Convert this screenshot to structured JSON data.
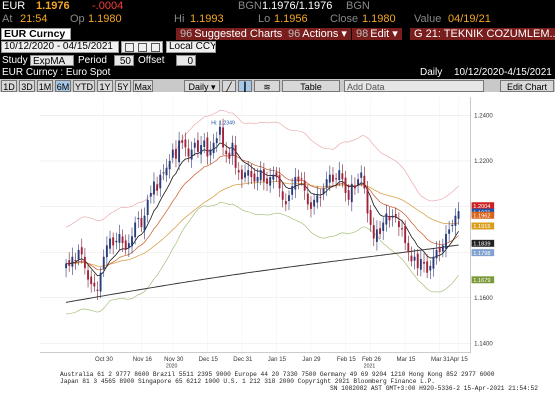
{
  "quote": {
    "ticker": "EUR",
    "last": "1.1976",
    "change": "-.0004",
    "bgn_label": "BGN",
    "bgn_bid_ask": "1.1976/1.1976",
    "bgn_2_label": "BGN",
    "time_prefix": "At",
    "time": "21:54",
    "op_label": "Op",
    "open": "1.1980",
    "hi_label": "Hi",
    "high": "1.1993",
    "lo_label": "Lo",
    "low": "1.1956",
    "close_label": "Close",
    "close": "1.1980",
    "value_label": "Value",
    "value_date": "04/19/21"
  },
  "toolbar": {
    "security": "EUR Curncy",
    "date_range": "10/12/2020 - 04/15/2021",
    "currency": "Local CCY",
    "suggested_num": "96",
    "suggested_label": "Suggested Charts",
    "actions_num": "96",
    "actions_label": "Actions",
    "edit_num": "98",
    "edit_label": "Edit",
    "page_label": "G 21: TEKNIK COZUMLEM..."
  },
  "study": {
    "study_label": "Study",
    "study_value": "ExpMA",
    "period_label": "Period",
    "period_value": "50",
    "offset_label": "Offset",
    "offset_value": "0"
  },
  "title": {
    "left": "EUR Curncy : Euro Spot",
    "freq": "Daily",
    "range": "10/12/2020-4/15/2021"
  },
  "buttons": {
    "periods": [
      "1D",
      "3D",
      "1M",
      "6M",
      "YTD",
      "1Y",
      "5Y",
      "Max"
    ],
    "selected_period": "6M",
    "freq_select": "Daily",
    "table_label": "Table",
    "add_data": "Add Data",
    "edit_chart": "Edit Chart"
  },
  "chart_data": {
    "type": "candlestick",
    "title": "EUR Curncy : Euro Spot",
    "x_ticks": [
      "Oct 30",
      "Nov 16",
      "Nov 30",
      "Dec 15",
      "Dec 31",
      "Jan 15",
      "Jan 29",
      "Feb 15",
      "Feb 26",
      "Mar 15",
      "Mar 31",
      "Apr 15"
    ],
    "year_labels": [
      {
        "after_tick": "Nov 30",
        "text": "2020"
      },
      {
        "after_tick": "Feb 26",
        "text": "2021"
      }
    ],
    "y_ticks": [
      "1.2400",
      "1.2200",
      "1.2000",
      "1.1800",
      "1.1600",
      "1.1400"
    ],
    "ylim": [
      1.136,
      1.248
    ],
    "hi_annotation": "Hi: 1.2349",
    "price_labels": [
      {
        "text": "1.2004",
        "value": 1.2004,
        "color": "#cc2222"
      },
      {
        "text": "1.1976",
        "value": 1.1976,
        "color": "#2255aa"
      },
      {
        "text": "1.1962",
        "value": 1.1962,
        "color": "#d9641a"
      },
      {
        "text": "1.1915",
        "value": 1.1915,
        "color": "#d99d1a"
      },
      {
        "text": "1.1839",
        "value": 1.1839,
        "color": "#222222"
      },
      {
        "text": "1.1798",
        "value": 1.1798,
        "color": "#7fa0d0"
      },
      {
        "text": "1.1679",
        "value": 1.1679,
        "color": "#7a9a3a"
      }
    ],
    "close_series": [
      1.175,
      1.174,
      1.178,
      1.176,
      1.181,
      1.179,
      1.173,
      1.168,
      1.166,
      1.165,
      1.163,
      1.171,
      1.178,
      1.183,
      1.186,
      1.183,
      1.185,
      1.188,
      1.184,
      1.181,
      1.184,
      1.187,
      1.193,
      1.195,
      1.191,
      1.196,
      1.203,
      1.206,
      1.211,
      1.207,
      1.214,
      1.215,
      1.217,
      1.22,
      1.225,
      1.221,
      1.229,
      1.228,
      1.226,
      1.222,
      1.225,
      1.228,
      1.224,
      1.227,
      1.229,
      1.222,
      1.225,
      1.228,
      1.23,
      1.235,
      1.226,
      1.223,
      1.221,
      1.228,
      1.217,
      1.215,
      1.212,
      1.215,
      1.216,
      1.213,
      1.211,
      1.213,
      1.216,
      1.211,
      1.21,
      1.213,
      1.214,
      1.213,
      1.208,
      1.203,
      1.201,
      1.205,
      1.209,
      1.213,
      1.211,
      1.212,
      1.207,
      1.201,
      1.199,
      1.203,
      1.205,
      1.204,
      1.208,
      1.212,
      1.214,
      1.211,
      1.212,
      1.216,
      1.212,
      1.206,
      1.203,
      1.21,
      1.208,
      1.212,
      1.215,
      1.208,
      1.197,
      1.192,
      1.186,
      1.19,
      1.188,
      1.193,
      1.197,
      1.194,
      1.196,
      1.195,
      1.191,
      1.19,
      1.184,
      1.18,
      1.176,
      1.178,
      1.173,
      1.177,
      1.175,
      1.171,
      1.174,
      1.178,
      1.181,
      1.18,
      1.183,
      1.188,
      1.19,
      1.192,
      1.196,
      1.198
    ]
  },
  "footer": {
    "line1": "Australia 61 2 9777 8600  Brazil 5511 2395 9000  Europe 44 20 7330 7500  Germany 49 69 9204 1210  Hong Kong 852 2977 6000",
    "line2": "Japan 81 3 4565 8900        Singapore 65 6212 1000        U.S. 1 212 318 2000        Copyright 2021 Bloomberg Finance L.P.",
    "line3": "SN 1082082 AST  GMT+3:00 H920-5336-2 15-Apr-2021 21:54:52"
  }
}
